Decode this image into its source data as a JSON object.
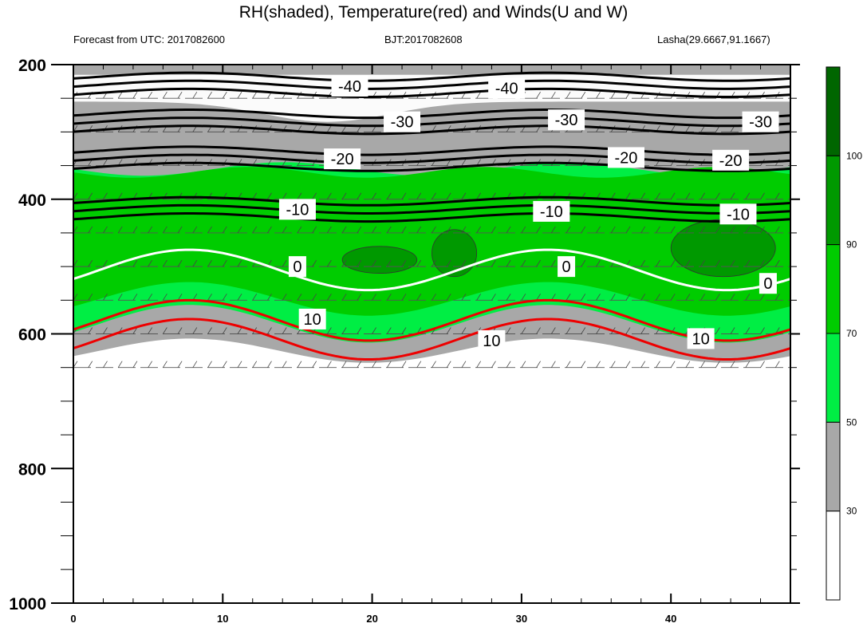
{
  "chart_data": {
    "type": "heatmap",
    "title": "RH(shaded), Temperature(red) and Winds(U and W)",
    "subtitle_left": "Forecast from UTC: 2017082600",
    "subtitle_center": "BJT:2017082608",
    "subtitle_right": "Lasha(29.6667,91.1667)",
    "xlabel": "",
    "ylabel": "",
    "xlim": [
      0,
      48
    ],
    "ylim": [
      1000,
      200
    ],
    "x_ticks": [
      "0",
      "10",
      "20",
      "30",
      "40"
    ],
    "y_ticks": [
      "200",
      "400",
      "600",
      "800",
      "1000"
    ],
    "colorbar": {
      "levels": [
        "30",
        "50",
        "70",
        "90",
        "100"
      ],
      "colors": [
        "#ffffff",
        "#a8a8a8",
        "#00ee44",
        "#00cc00",
        "#009900",
        "#006600"
      ]
    },
    "rh_regions": {
      "gray_top": 200,
      "green_top": 355,
      "green_bottom": 585,
      "gray_bottom": 625,
      "dark_patches": [
        {
          "x0": 18,
          "x1": 23,
          "p0": 470,
          "p1": 510
        },
        {
          "x0": 24,
          "x1": 27,
          "p0": 445,
          "p1": 515
        },
        {
          "x0": 40,
          "x1": 47,
          "p0": 430,
          "p1": 515
        }
      ]
    },
    "temperature_contours": [
      {
        "level": "-40",
        "pressure": 230,
        "color": "#000000",
        "labels": [
          {
            "x": 18.5,
            "p": 232
          },
          {
            "x": 29,
            "p": 235
          }
        ]
      },
      {
        "level": "-30",
        "pressure": 285,
        "color": "#000000",
        "labels": [
          {
            "x": 22,
            "p": 285
          },
          {
            "x": 33,
            "p": 282
          },
          {
            "x": 46,
            "p": 285
          }
        ]
      },
      {
        "level": "-20",
        "pressure": 340,
        "color": "#000000",
        "labels": [
          {
            "x": 18,
            "p": 340
          },
          {
            "x": 37,
            "p": 338
          },
          {
            "x": 44,
            "p": 342
          }
        ]
      },
      {
        "level": "-10",
        "pressure": 415,
        "color": "#000000",
        "labels": [
          {
            "x": 15,
            "p": 415
          },
          {
            "x": 32,
            "p": 418
          },
          {
            "x": 44.5,
            "p": 422
          }
        ]
      },
      {
        "level": "0",
        "pressure": 505,
        "color": "#ffffff",
        "labels": [
          {
            "x": 15,
            "p": 500
          },
          {
            "x": 33,
            "p": 500
          },
          {
            "x": 46.5,
            "p": 525
          }
        ]
      },
      {
        "level": "10",
        "pressure": 580,
        "color": "#ee0000",
        "labels": [
          {
            "x": 16,
            "p": 578
          },
          {
            "x": 28,
            "p": 610
          },
          {
            "x": 42,
            "p": 607
          }
        ]
      }
    ],
    "wind_levels": [
      200,
      250,
      300,
      350,
      400,
      450,
      500,
      550,
      600,
      650
    ]
  }
}
